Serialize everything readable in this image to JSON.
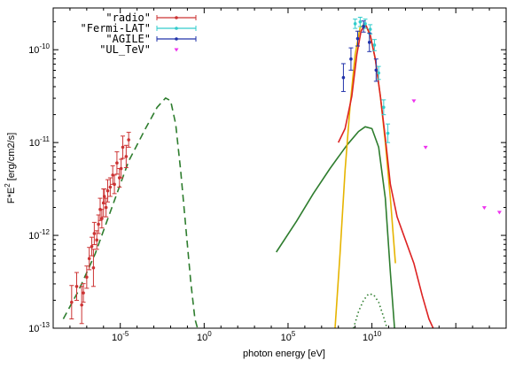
{
  "chart_data": {
    "type": "scatter",
    "xlabel": "photon energy [eV]",
    "ylabel": "F*E",
    "ylabel_sup": "2",
    "ylabel_tail": " [erg/cm2/s]",
    "x_log": true,
    "y_log": true,
    "xlim_log10": [
      -9,
      18
    ],
    "ylim_log10": [
      -13,
      -9.55
    ],
    "x_tick_labels": [
      {
        "exp": -5,
        "base": "10",
        "sup": "-5"
      },
      {
        "exp": 0,
        "base": "10",
        "sup": "0"
      },
      {
        "exp": 5,
        "base": "10",
        "sup": "5"
      },
      {
        "exp": 10,
        "base": "10",
        "sup": "10"
      }
    ],
    "y_tick_labels": [
      {
        "exp": -13,
        "base": "10",
        "sup": "-13"
      },
      {
        "exp": -12,
        "base": "10",
        "sup": "-12"
      },
      {
        "exp": -11,
        "base": "10",
        "sup": "-11"
      },
      {
        "exp": -10,
        "base": "10",
        "sup": "-10"
      }
    ],
    "legend_position": "top-left",
    "series": [
      {
        "name": "\"radio\"",
        "kind": "points",
        "color": "#cc3333",
        "marker": "circle",
        "points": [
          {
            "x": -7.9,
            "y": -12.72,
            "err": 0.18
          },
          {
            "x": -7.6,
            "y": -12.55,
            "err": 0.15
          },
          {
            "x": -7.3,
            "y": -12.75,
            "err": 0.2
          },
          {
            "x": -7.2,
            "y": -12.62,
            "err": 0.1
          },
          {
            "x": -7.0,
            "y": -12.45,
            "err": 0.12
          },
          {
            "x": -6.85,
            "y": -12.25,
            "err": 0.12
          },
          {
            "x": -6.7,
            "y": -12.12,
            "err": 0.1
          },
          {
            "x": -6.6,
            "y": -12.35,
            "err": 0.2
          },
          {
            "x": -6.55,
            "y": -11.98,
            "err": 0.12
          },
          {
            "x": -6.4,
            "y": -12.05,
            "err": 0.1
          },
          {
            "x": -6.3,
            "y": -11.88,
            "err": 0.1
          },
          {
            "x": -6.2,
            "y": -11.72,
            "err": 0.12
          },
          {
            "x": -6.1,
            "y": -11.82,
            "err": 0.1
          },
          {
            "x": -6.0,
            "y": -11.65,
            "err": 0.15
          },
          {
            "x": -5.95,
            "y": -11.58,
            "err": 0.08
          },
          {
            "x": -5.85,
            "y": -11.7,
            "err": 0.1
          },
          {
            "x": -5.75,
            "y": -11.52,
            "err": 0.12
          },
          {
            "x": -5.6,
            "y": -11.48,
            "err": 0.1
          },
          {
            "x": -5.45,
            "y": -11.35,
            "err": 0.1
          },
          {
            "x": -5.35,
            "y": -11.45,
            "err": 0.1
          },
          {
            "x": -5.2,
            "y": -11.22,
            "err": 0.12
          },
          {
            "x": -5.05,
            "y": -11.38,
            "err": 0.1
          },
          {
            "x": -4.95,
            "y": -11.28,
            "err": 0.1
          },
          {
            "x": -4.85,
            "y": -11.05,
            "err": 0.12
          },
          {
            "x": -4.65,
            "y": -11.15,
            "err": 0.12
          },
          {
            "x": -4.5,
            "y": -10.97,
            "err": 0.08
          }
        ]
      },
      {
        "name": "\"Fermi-LAT\"",
        "kind": "points",
        "color": "#33cccc",
        "marker": "circle",
        "points": [
          {
            "x": 9.0,
            "y": -9.72,
            "err": 0.05
          },
          {
            "x": 9.3,
            "y": -9.7,
            "err": 0.05
          },
          {
            "x": 9.6,
            "y": -9.72,
            "err": 0.05
          },
          {
            "x": 9.9,
            "y": -9.78,
            "err": 0.05
          },
          {
            "x": 10.15,
            "y": -9.95,
            "err": 0.06
          },
          {
            "x": 10.4,
            "y": -10.25,
            "err": 0.07
          },
          {
            "x": 10.7,
            "y": -10.62,
            "err": 0.08
          },
          {
            "x": 10.95,
            "y": -10.9,
            "err": 0.1
          }
        ]
      },
      {
        "name": "\"AGILE\"",
        "kind": "points",
        "color": "#2233aa",
        "marker": "circle",
        "points": [
          {
            "x": 8.3,
            "y": -10.3,
            "err": 0.15
          },
          {
            "x": 8.75,
            "y": -10.1,
            "err": 0.12
          },
          {
            "x": 9.15,
            "y": -9.88,
            "err": 0.08
          },
          {
            "x": 9.5,
            "y": -9.75,
            "err": 0.06
          },
          {
            "x": 9.85,
            "y": -9.92,
            "err": 0.1
          },
          {
            "x": 10.25,
            "y": -10.22,
            "err": 0.12
          }
        ]
      },
      {
        "name": "\"UL_TeV\"",
        "kind": "points",
        "color": "#ee33ee",
        "marker": "triangle",
        "points": [
          {
            "x": 12.5,
            "y": -10.55
          },
          {
            "x": 13.2,
            "y": -11.05
          },
          {
            "x": 16.7,
            "y": -11.7
          },
          {
            "x": 17.6,
            "y": -11.75
          }
        ]
      },
      {
        "name": "",
        "kind": "curve",
        "color": "#2e7d2e",
        "dash": "dashed",
        "x": [
          -8.4,
          -7.5,
          -6.5,
          -5.5,
          -4.5,
          -3.5,
          -2.8,
          -2.3,
          -2.0,
          -1.7,
          -1.4,
          -1.1,
          -0.8,
          -0.55,
          -0.4
        ],
        "y": [
          -12.9,
          -12.6,
          -12.2,
          -11.7,
          -11.2,
          -10.85,
          -10.62,
          -10.52,
          -10.55,
          -10.8,
          -11.3,
          -11.9,
          -12.5,
          -12.9,
          -13.0
        ]
      },
      {
        "name": "",
        "kind": "curve",
        "color": "#2e7d2e",
        "dash": "solid",
        "x": [
          4.3,
          5.5,
          6.5,
          7.5,
          8.5,
          9.2,
          9.6,
          10.0,
          10.4,
          10.8,
          11.1,
          11.35
        ],
        "y": [
          -12.18,
          -11.85,
          -11.55,
          -11.28,
          -11.03,
          -10.88,
          -10.83,
          -10.85,
          -11.05,
          -11.6,
          -12.4,
          -13.0
        ]
      },
      {
        "name": "",
        "kind": "curve",
        "color": "#e6b400",
        "dash": "solid",
        "x": [
          7.8,
          8.1,
          8.4,
          8.7,
          9.0,
          9.3,
          9.6,
          9.9,
          10.2,
          10.5,
          10.8,
          11.1,
          11.4
        ],
        "y": [
          -13.0,
          -12.2,
          -11.3,
          -10.6,
          -10.05,
          -9.76,
          -9.72,
          -9.85,
          -10.1,
          -10.5,
          -11.0,
          -11.6,
          -12.3
        ]
      },
      {
        "name": "",
        "kind": "curve",
        "color": "#dd2222",
        "dash": "solid",
        "x": [
          8.0,
          8.4,
          8.8,
          9.1,
          9.35,
          9.6,
          9.9,
          10.2,
          10.5,
          10.8,
          11.1,
          11.5,
          12.0,
          12.5,
          13.0,
          13.4,
          13.65
        ],
        "y": [
          -11.0,
          -10.85,
          -10.5,
          -10.05,
          -9.8,
          -9.72,
          -9.84,
          -10.1,
          -10.5,
          -10.95,
          -11.45,
          -11.8,
          -12.05,
          -12.3,
          -12.65,
          -12.9,
          -13.0
        ]
      },
      {
        "name": "",
        "kind": "curve",
        "color": "#2e7d2e",
        "dash": "dotted",
        "x": [
          8.9,
          9.2,
          9.5,
          9.8,
          10.1,
          10.4,
          10.7,
          10.9
        ],
        "y": [
          -13.0,
          -12.82,
          -12.7,
          -12.63,
          -12.64,
          -12.72,
          -12.88,
          -13.0
        ]
      }
    ]
  }
}
